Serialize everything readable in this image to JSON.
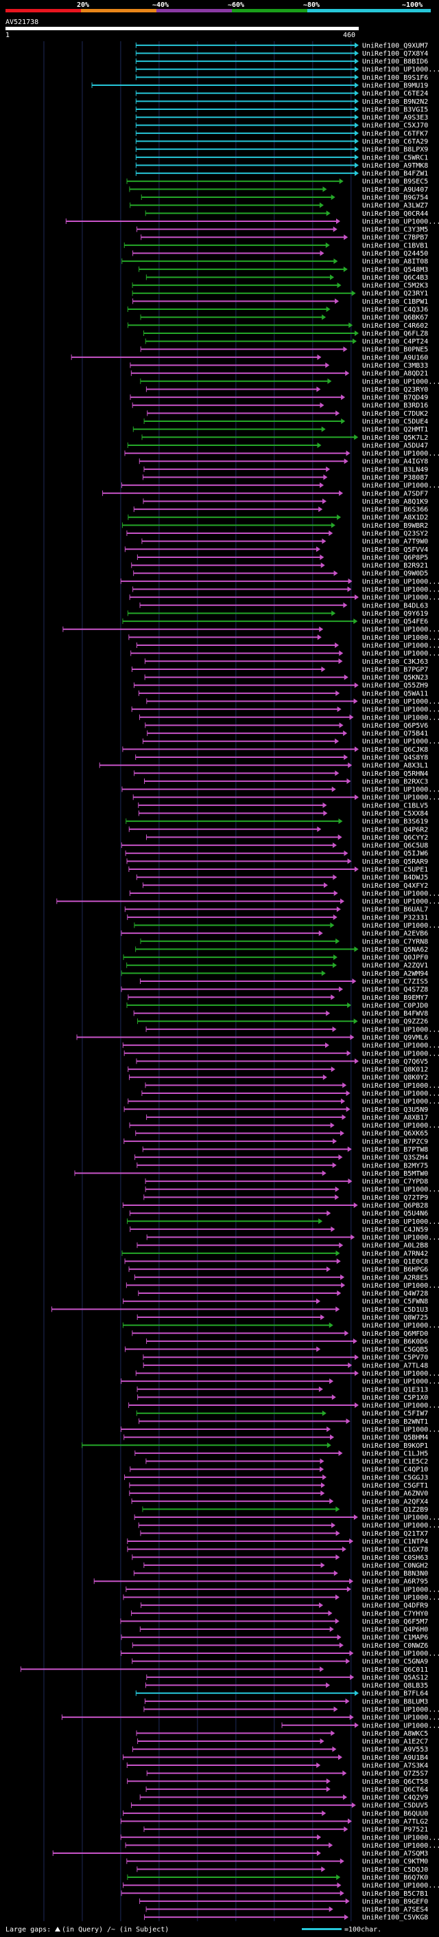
{
  "query_name": "AV521738",
  "query_start": "1",
  "query_end": "460",
  "scale": {
    "labels": [
      "20%",
      "~40%",
      "~60%",
      "~80%",
      "~100%"
    ],
    "colors": [
      "#e8151f",
      "#e8861a",
      "#8a3aa4",
      "#1a9e1a",
      "#27c7d9"
    ]
  },
  "colors": {
    "cyan": "#27c7d9",
    "magenta": "#c854c8",
    "green": "#25a828",
    "query": "#ffffff",
    "grid": "#1e2a5a"
  },
  "legend": {
    "large_gaps": "Large gaps:",
    "in_query": "(in Query)",
    "in_subject": "/~ (in Subject)",
    "scale_bar": "=100char."
  },
  "chart_data": {
    "type": "alignment-overview",
    "query_length": 460,
    "hits": [
      {
        "label": "UniRef100_Q9XUM7",
        "c": "cyan"
      },
      {
        "label": "UniRef100_Q7X8Y4",
        "c": "cyan"
      },
      {
        "label": "UniRef100_B8BID6",
        "c": "cyan"
      },
      {
        "label": "UniRef100_UP1000...",
        "c": "cyan"
      },
      {
        "label": "UniRef100_B9S1F6",
        "c": "cyan"
      },
      {
        "label": "UniRef100_B9MU19",
        "c": "cyan"
      },
      {
        "label": "UniRef100_C6TE24",
        "c": "cyan"
      },
      {
        "label": "UniRef100_B9N2N2",
        "c": "cyan"
      },
      {
        "label": "UniRef100_B3VGI5",
        "c": "cyan"
      },
      {
        "label": "UniRef100_A9S3E3",
        "c": "cyan"
      },
      {
        "label": "UniRef100_C5XJ70",
        "c": "cyan"
      },
      {
        "label": "UniRef100_C6TFK7",
        "c": "cyan"
      },
      {
        "label": "UniRef100_C6TA29",
        "c": "cyan"
      },
      {
        "label": "UniRef100_B8LPX9",
        "c": "cyan"
      },
      {
        "label": "UniRef100_C5WRC1",
        "c": "cyan"
      },
      {
        "label": "UniRef100_A9TMK8",
        "c": "cyan"
      },
      {
        "label": "UniRef100_B4FZW1",
        "c": "cyan"
      },
      {
        "label": "UniRef100_B9SEC5",
        "c": "green"
      },
      {
        "label": "UniRef100_A9U407",
        "c": "green"
      },
      {
        "label": "UniRef100_B9G754",
        "c": "green"
      },
      {
        "label": "UniRef100_A3LWZ7",
        "c": "green"
      },
      {
        "label": "UniRef100_Q0CR44",
        "c": "green"
      },
      {
        "label": "UniRef100_UP1000...",
        "c": "magenta"
      },
      {
        "label": "UniRef100_C3Y3M5",
        "c": "magenta"
      },
      {
        "label": "UniRef100_C7BPB7",
        "c": "magenta"
      },
      {
        "label": "UniRef100_C1BVB1",
        "c": "green"
      },
      {
        "label": "UniRef100_Q24450",
        "c": "magenta"
      },
      {
        "label": "UniRef100_A8IT08",
        "c": "green"
      },
      {
        "label": "UniRef100_Q548M3",
        "c": "green"
      },
      {
        "label": "UniRef100_Q6C4B3",
        "c": "green"
      },
      {
        "label": "UniRef100_C5M2K3",
        "c": "green"
      },
      {
        "label": "UniRef100_Q23RY1",
        "c": "green"
      },
      {
        "label": "UniRef100_C1BPW1",
        "c": "magenta"
      },
      {
        "label": "UniRef100_C4Q3J6",
        "c": "green"
      },
      {
        "label": "UniRef100_Q6BK67",
        "c": "green"
      },
      {
        "label": "UniRef100_C4R602",
        "c": "green"
      },
      {
        "label": "UniRef100_Q6FLZ8",
        "c": "green"
      },
      {
        "label": "UniRef100_C4PT24",
        "c": "green"
      },
      {
        "label": "UniRef100_B0PNE5",
        "c": "magenta"
      },
      {
        "label": "UniRef100_A9U160",
        "c": "magenta"
      },
      {
        "label": "UniRef100_C3MB33",
        "c": "magenta"
      },
      {
        "label": "UniRef100_A8QD21",
        "c": "magenta"
      },
      {
        "label": "UniRef100_UP1000...",
        "c": "green"
      },
      {
        "label": "UniRef100_Q23RY0",
        "c": "magenta"
      },
      {
        "label": "UniRef100_B7QD49",
        "c": "magenta"
      },
      {
        "label": "UniRef100_B3RD16",
        "c": "magenta"
      },
      {
        "label": "UniRef100_C7DUK2",
        "c": "magenta"
      },
      {
        "label": "UniRef100_C5DUE4",
        "c": "green"
      },
      {
        "label": "UniRef100_Q2HMT1",
        "c": "green"
      },
      {
        "label": "UniRef100_Q5K7L2",
        "c": "green"
      },
      {
        "label": "UniRef100_A5DU47",
        "c": "green"
      },
      {
        "label": "UniRef100_UP1000...",
        "c": "magenta"
      },
      {
        "label": "UniRef100_A4IGY8",
        "c": "magenta"
      },
      {
        "label": "UniRef100_B3LN49",
        "c": "magenta"
      },
      {
        "label": "UniRef100_P38087",
        "c": "magenta"
      },
      {
        "label": "UniRef100_UP1000...",
        "c": "magenta"
      },
      {
        "label": "UniRef100_A7SDF7",
        "c": "magenta"
      },
      {
        "label": "UniRef100_A8Q1K9",
        "c": "magenta"
      },
      {
        "label": "UniRef100_B6S366",
        "c": "magenta"
      },
      {
        "label": "UniRef100_A8X1D2",
        "c": "green"
      },
      {
        "label": "UniRef100_B9WBR2",
        "c": "green"
      },
      {
        "label": "UniRef100_Q23SY2",
        "c": "magenta"
      },
      {
        "label": "UniRef100_A7T9W0",
        "c": "magenta"
      },
      {
        "label": "UniRef100_Q5FVV4",
        "c": "magenta"
      },
      {
        "label": "UniRef100_Q6P8P5",
        "c": "magenta"
      },
      {
        "label": "UniRef100_B2R921",
        "c": "magenta"
      },
      {
        "label": "UniRef100_Q9W0D5",
        "c": "magenta"
      },
      {
        "label": "UniRef100_UP1000...",
        "c": "magenta"
      },
      {
        "label": "UniRef100_UP1000...",
        "c": "magenta"
      },
      {
        "label": "UniRef100_UP1000...",
        "c": "magenta"
      },
      {
        "label": "UniRef100_B4DL63",
        "c": "magenta"
      },
      {
        "label": "UniRef100_Q9Y619",
        "c": "green"
      },
      {
        "label": "UniRef100_Q54FE6",
        "c": "green"
      },
      {
        "label": "UniRef100_UP1000...",
        "c": "magenta"
      },
      {
        "label": "UniRef100_UP1000...",
        "c": "magenta"
      },
      {
        "label": "UniRef100_UP1000...",
        "c": "magenta"
      },
      {
        "label": "UniRef100_UP1000...",
        "c": "magenta"
      },
      {
        "label": "UniRef100_C3KJ63",
        "c": "magenta"
      },
      {
        "label": "UniRef100_B7PGP7",
        "c": "magenta"
      },
      {
        "label": "UniRef100_Q5KN23",
        "c": "magenta"
      },
      {
        "label": "UniRef100_Q55ZH9",
        "c": "magenta"
      },
      {
        "label": "UniRef100_Q5WA11",
        "c": "magenta"
      },
      {
        "label": "UniRef100_UP1000...",
        "c": "magenta"
      },
      {
        "label": "UniRef100_UP1000...",
        "c": "magenta"
      },
      {
        "label": "UniRef100_UP1000...",
        "c": "magenta"
      },
      {
        "label": "UniRef100_Q6P5V6",
        "c": "magenta"
      },
      {
        "label": "UniRef100_Q75B41",
        "c": "magenta"
      },
      {
        "label": "UniRef100_UP1000...",
        "c": "magenta"
      },
      {
        "label": "UniRef100_Q6CJK8",
        "c": "magenta"
      },
      {
        "label": "UniRef100_Q4S8Y8",
        "c": "magenta"
      },
      {
        "label": "UniRef100_A8X3L1",
        "c": "magenta"
      },
      {
        "label": "UniRef100_Q5RHN4",
        "c": "magenta"
      },
      {
        "label": "UniRef100_B2RXC3",
        "c": "magenta"
      },
      {
        "label": "UniRef100_UP1000...",
        "c": "magenta"
      },
      {
        "label": "UniRef100_UP1000...",
        "c": "magenta"
      },
      {
        "label": "UniRef100_C1BLV5",
        "c": "magenta"
      },
      {
        "label": "UniRef100_C5XX84",
        "c": "magenta"
      },
      {
        "label": "UniRef100_B3S619",
        "c": "green"
      },
      {
        "label": "UniRef100_Q4P6R2",
        "c": "magenta"
      },
      {
        "label": "UniRef100_Q6CYY2",
        "c": "magenta"
      },
      {
        "label": "UniRef100_Q6C5U8",
        "c": "magenta"
      },
      {
        "label": "UniRef100_Q5IJW6",
        "c": "magenta"
      },
      {
        "label": "UniRef100_Q5RAR9",
        "c": "magenta"
      },
      {
        "label": "UniRef100_C5UPE1",
        "c": "magenta"
      },
      {
        "label": "UniRef100_B4DWJ5",
        "c": "magenta"
      },
      {
        "label": "UniRef100_Q4XFY2",
        "c": "magenta"
      },
      {
        "label": "UniRef100_UP1000...",
        "c": "magenta"
      },
      {
        "label": "UniRef100_UP1000...",
        "c": "magenta"
      },
      {
        "label": "UniRef100_B6UAL7",
        "c": "magenta"
      },
      {
        "label": "UniRef100_P32331",
        "c": "magenta"
      },
      {
        "label": "UniRef100_UP1000...",
        "c": "green"
      },
      {
        "label": "UniRef100_A2EVB6",
        "c": "magenta"
      },
      {
        "label": "UniRef100_C7YRN8",
        "c": "green"
      },
      {
        "label": "UniRef100_Q5NA62",
        "c": "green"
      },
      {
        "label": "UniRef100_Q0JPF0",
        "c": "green"
      },
      {
        "label": "UniRef100_A2ZQV1",
        "c": "green"
      },
      {
        "label": "UniRef100_A2WM94",
        "c": "green"
      },
      {
        "label": "UniRef100_C7ZIS5",
        "c": "magenta"
      },
      {
        "label": "UniRef100_Q4S7Z8",
        "c": "magenta"
      },
      {
        "label": "UniRef100_B9EMY7",
        "c": "magenta"
      },
      {
        "label": "UniRef100_C0PJD0",
        "c": "green"
      },
      {
        "label": "UniRef100_B4FWV8",
        "c": "magenta"
      },
      {
        "label": "UniRef100_Q9ZZ26",
        "c": "green"
      },
      {
        "label": "UniRef100_UP1000...",
        "c": "magenta"
      },
      {
        "label": "UniRef100_Q9VML6",
        "c": "magenta"
      },
      {
        "label": "UniRef100_UP1000...",
        "c": "magenta"
      },
      {
        "label": "UniRef100_UP1000...",
        "c": "magenta"
      },
      {
        "label": "UniRef100_Q7Q6V5",
        "c": "magenta"
      },
      {
        "label": "UniRef100_Q8K012",
        "c": "magenta"
      },
      {
        "label": "UniRef100_Q8K0Y2",
        "c": "magenta"
      },
      {
        "label": "UniRef100_UP1000...",
        "c": "magenta"
      },
      {
        "label": "UniRef100_UP1000...",
        "c": "magenta"
      },
      {
        "label": "UniRef100_UP1000...",
        "c": "magenta"
      },
      {
        "label": "UniRef100_Q3U5N9",
        "c": "magenta"
      },
      {
        "label": "UniRef100_A8XB17",
        "c": "magenta"
      },
      {
        "label": "UniRef100_UP1000...",
        "c": "magenta"
      },
      {
        "label": "UniRef100_Q6XK65",
        "c": "magenta"
      },
      {
        "label": "UniRef100_B7PZC9",
        "c": "magenta"
      },
      {
        "label": "UniRef100_B7PTW8",
        "c": "magenta"
      },
      {
        "label": "UniRef100_Q3SZH4",
        "c": "magenta"
      },
      {
        "label": "UniRef100_B2MY75",
        "c": "magenta"
      },
      {
        "label": "UniRef100_B5MTW0",
        "c": "magenta"
      },
      {
        "label": "UniRef100_C7YPD8",
        "c": "magenta"
      },
      {
        "label": "UniRef100_UP1000...",
        "c": "magenta"
      },
      {
        "label": "UniRef100_Q72TP9",
        "c": "magenta"
      },
      {
        "label": "UniRef100_Q6PB28",
        "c": "magenta"
      },
      {
        "label": "UniRef100_Q5U4N6",
        "c": "magenta"
      },
      {
        "label": "UniRef100_UP1000...",
        "c": "green"
      },
      {
        "label": "UniRef100_C4JN59",
        "c": "magenta"
      },
      {
        "label": "UniRef100_UP1000...",
        "c": "magenta"
      },
      {
        "label": "UniRef100_A0L2B8",
        "c": "magenta"
      },
      {
        "label": "UniRef100_A7RN42",
        "c": "green"
      },
      {
        "label": "UniRef100_Q1E0C8",
        "c": "magenta"
      },
      {
        "label": "UniRef100_B6HPG6",
        "c": "magenta"
      },
      {
        "label": "UniRef100_A2R8E5",
        "c": "magenta"
      },
      {
        "label": "UniRef100_UP1000...",
        "c": "magenta"
      },
      {
        "label": "UniRef100_Q4W728",
        "c": "magenta"
      },
      {
        "label": "UniRef100_C5FWN8",
        "c": "magenta"
      },
      {
        "label": "UniRef100_C5D1U3",
        "c": "magenta"
      },
      {
        "label": "UniRef100_Q8W725",
        "c": "magenta"
      },
      {
        "label": "UniRef100_UP1000...",
        "c": "green"
      },
      {
        "label": "UniRef100_Q6MFD0",
        "c": "magenta"
      },
      {
        "label": "UniRef100_B6K0D6",
        "c": "magenta"
      },
      {
        "label": "UniRef100_C5GQB5",
        "c": "magenta"
      },
      {
        "label": "UniRef100_C5PV70",
        "c": "magenta"
      },
      {
        "label": "UniRef100_A7TL48",
        "c": "magenta"
      },
      {
        "label": "UniRef100_UP1000...",
        "c": "magenta"
      },
      {
        "label": "UniRef100_UP1000...",
        "c": "magenta"
      },
      {
        "label": "UniRef100_Q1E313",
        "c": "magenta"
      },
      {
        "label": "UniRef100_C5P1X0",
        "c": "magenta"
      },
      {
        "label": "UniRef100_UP1000...",
        "c": "magenta"
      },
      {
        "label": "UniRef100_C5FIW7",
        "c": "green"
      },
      {
        "label": "UniRef100_B2WNT1",
        "c": "magenta"
      },
      {
        "label": "UniRef100_UP1000...",
        "c": "magenta"
      },
      {
        "label": "UniRef100_Q5BHM4",
        "c": "magenta"
      },
      {
        "label": "UniRef100_B9KOP1",
        "c": "green"
      },
      {
        "label": "UniRef100_C1LJH5",
        "c": "magenta"
      },
      {
        "label": "UniRef100_C1E5C2",
        "c": "magenta"
      },
      {
        "label": "UniRef100_C4QP10",
        "c": "magenta"
      },
      {
        "label": "UniRef100_C5GGJ3",
        "c": "magenta"
      },
      {
        "label": "UniRef100_C5GFT1",
        "c": "magenta"
      },
      {
        "label": "UniRef100_A6ZNV0",
        "c": "magenta"
      },
      {
        "label": "UniRef100_A2QFX4",
        "c": "magenta"
      },
      {
        "label": "UniRef100_Q1Z2B9",
        "c": "green"
      },
      {
        "label": "UniRef100_UP1000...",
        "c": "magenta"
      },
      {
        "label": "UniRef100_UP1000...",
        "c": "magenta"
      },
      {
        "label": "UniRef100_Q21TX7",
        "c": "magenta"
      },
      {
        "label": "UniRef100_C1NTP4",
        "c": "magenta"
      },
      {
        "label": "UniRef100_C1GX78",
        "c": "magenta"
      },
      {
        "label": "UniRef100_C0SH63",
        "c": "magenta"
      },
      {
        "label": "UniRef100_C0NGH2",
        "c": "magenta"
      },
      {
        "label": "UniRef100_B8N3N0",
        "c": "magenta"
      },
      {
        "label": "UniRef100_A6R795",
        "c": "magenta"
      },
      {
        "label": "UniRef100_UP1000...",
        "c": "magenta"
      },
      {
        "label": "UniRef100_UP1000...",
        "c": "magenta"
      },
      {
        "label": "UniRef100_Q4DFR9",
        "c": "magenta"
      },
      {
        "label": "UniRef100_C7YHY0",
        "c": "magenta"
      },
      {
        "label": "UniRef100_Q6F5M7",
        "c": "magenta"
      },
      {
        "label": "UniRef100_Q4P6H0",
        "c": "magenta"
      },
      {
        "label": "UniRef100_C1MAP6",
        "c": "magenta"
      },
      {
        "label": "UniRef100_C0NWZ6",
        "c": "magenta"
      },
      {
        "label": "UniRef100_UP1000...",
        "c": "magenta"
      },
      {
        "label": "UniRef100_C5GNA9",
        "c": "magenta"
      },
      {
        "label": "UniRef100_Q6C011",
        "c": "magenta"
      },
      {
        "label": "UniRef100_Q5AS12",
        "c": "magenta"
      },
      {
        "label": "UniRef100_Q8LB35",
        "c": "magenta"
      },
      {
        "label": "UniRef100_B7FL64",
        "c": "cyan"
      },
      {
        "label": "UniRef100_B8LUM3",
        "c": "magenta"
      },
      {
        "label": "UniRef100_UP1000...",
        "c": "magenta"
      },
      {
        "label": "UniRef100_UP1000...",
        "c": "magenta"
      },
      {
        "label": "UniRef100_UP1000...",
        "c": "magenta"
      },
      {
        "label": "UniRef100_A8WKC5",
        "c": "magenta"
      },
      {
        "label": "UniRef100_A1E2C7",
        "c": "magenta"
      },
      {
        "label": "UniRef100_A9V553",
        "c": "magenta"
      },
      {
        "label": "UniRef100_A9U1B4",
        "c": "magenta"
      },
      {
        "label": "UniRef100_A7S3K4",
        "c": "magenta"
      },
      {
        "label": "UniRef100_Q7Z5S7",
        "c": "magenta"
      },
      {
        "label": "UniRef100_Q6CT58",
        "c": "magenta"
      },
      {
        "label": "UniRef100_Q6CT64",
        "c": "magenta"
      },
      {
        "label": "UniRef100_C4Q2V9",
        "c": "magenta"
      },
      {
        "label": "UniRef100_C5DUV5",
        "c": "magenta"
      },
      {
        "label": "UniRef100_B6QUU0",
        "c": "magenta"
      },
      {
        "label": "UniRef100_A7TLG2",
        "c": "magenta"
      },
      {
        "label": "UniRef100_P97521",
        "c": "magenta"
      },
      {
        "label": "UniRef100_UP1000...",
        "c": "magenta"
      },
      {
        "label": "UniRef100_UP1000...",
        "c": "magenta"
      },
      {
        "label": "UniRef100_A7SQM3",
        "c": "magenta"
      },
      {
        "label": "UniRef100_C9KTM0",
        "c": "magenta"
      },
      {
        "label": "UniRef100_C5DQJ0",
        "c": "magenta"
      },
      {
        "label": "UniRef100_B6Q7K0",
        "c": "green"
      },
      {
        "label": "UniRef100_UP1000...",
        "c": "magenta"
      },
      {
        "label": "UniRef100_B5C7B1",
        "c": "magenta"
      },
      {
        "label": "UniRef100_B9GEF0",
        "c": "magenta"
      },
      {
        "label": "UniRef100_A7SES4",
        "c": "magenta"
      },
      {
        "label": "UniRef100_C5VKG8",
        "c": "magenta"
      }
    ]
  }
}
